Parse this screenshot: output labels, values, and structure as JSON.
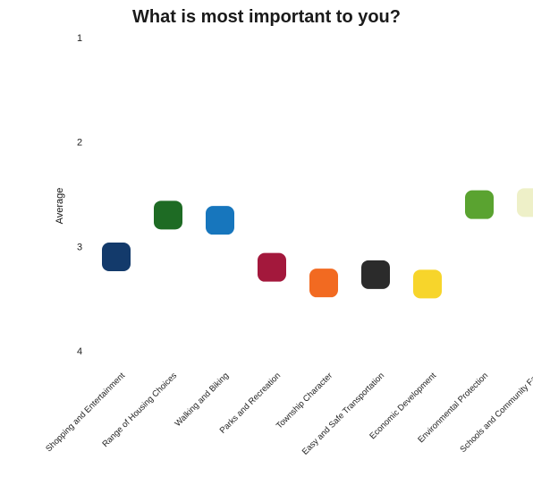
{
  "chart_data": {
    "type": "scatter",
    "title": "What is most important to you?",
    "ylabel": "Average",
    "xlabel": "",
    "ylim": [
      1,
      4
    ],
    "y_inverted": true,
    "yticks": [
      "1",
      "2",
      "3",
      "4"
    ],
    "grid": false,
    "categories": [
      "Shopping and Entertainment",
      "Range of Housing Choices",
      "Walking and Biking",
      "Parks and Recreation",
      "Township Character",
      "Easy and Safe Transportation",
      "Economic Development",
      "Environmental Protection",
      "Schools and Community Fac"
    ],
    "values": [
      3.1,
      2.7,
      2.75,
      3.2,
      3.35,
      3.27,
      3.36,
      2.6,
      2.58
    ],
    "colors": [
      "#133a6b",
      "#1e6b24",
      "#1776bd",
      "#a3183c",
      "#f26a21",
      "#2b2b2b",
      "#f7d52b",
      "#5aa330",
      "#eef0c8"
    ]
  }
}
